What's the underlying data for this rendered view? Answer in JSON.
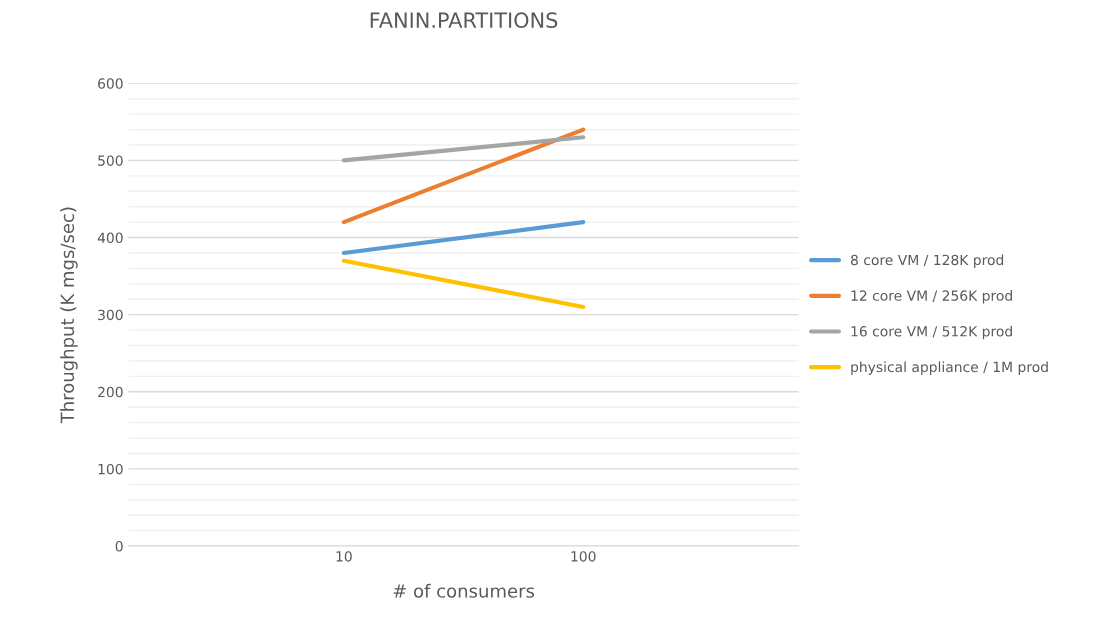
{
  "chart_data": {
    "type": "line",
    "title": "FANIN.PARTITIONS",
    "xlabel": "# of consumers",
    "ylabel": "Throughput (K mgs/sec)",
    "categories": [
      "10",
      "100"
    ],
    "series": [
      {
        "name": "8 core VM / 128K prod",
        "color": "#5b9bd5",
        "values": [
          380,
          420
        ]
      },
      {
        "name": "12 core VM / 256K prod",
        "color": "#ed7d31",
        "values": [
          420,
          540
        ]
      },
      {
        "name": "16 core VM / 512K prod",
        "color": "#a5a5a5",
        "values": [
          500,
          530
        ]
      },
      {
        "name": "physical appliance / 1M prod",
        "color": "#ffc000",
        "values": [
          370,
          310
        ]
      }
    ],
    "ylim": [
      0,
      600
    ],
    "yticks": [
      0,
      {
        "value": 20,
        "label": null
      },
      {
        "value": 40,
        "label": null
      },
      {
        "value": 60,
        "label": null
      },
      {
        "value": 80,
        "label": null
      },
      100,
      {
        "value": 120,
        "label": null
      },
      {
        "value": 140,
        "label": null
      },
      {
        "value": 160,
        "label": null
      },
      {
        "value": 180,
        "label": null
      },
      200,
      {
        "value": 220,
        "label": null
      },
      {
        "value": 240,
        "label": null
      },
      {
        "value": 260,
        "label": null
      },
      {
        "value": 280,
        "label": null
      },
      300,
      {
        "value": 320,
        "label": null
      },
      {
        "value": 340,
        "label": null
      },
      {
        "value": 360,
        "label": null
      },
      {
        "value": 380,
        "label": null
      },
      400,
      {
        "value": 420,
        "label": null
      },
      {
        "value": 440,
        "label": null
      },
      {
        "value": 460,
        "label": null
      },
      {
        "value": 480,
        "label": null
      },
      500,
      {
        "value": 520,
        "label": null
      },
      {
        "value": 540,
        "label": null
      },
      {
        "value": 560,
        "label": null
      },
      {
        "value": 580,
        "label": null
      },
      600
    ],
    "grid": "y",
    "legend": "right",
    "marker": "none",
    "line_style": "solid"
  }
}
